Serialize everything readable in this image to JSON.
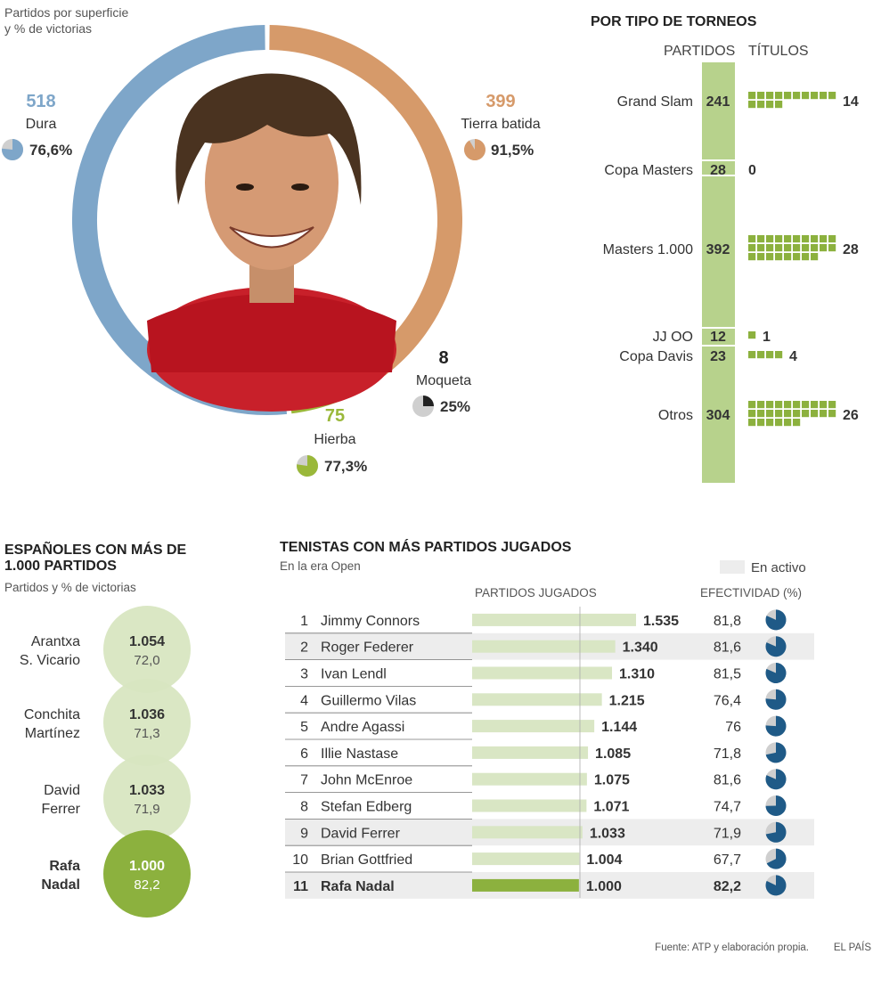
{
  "colors": {
    "dura": "#7ea6c9",
    "tierra": "#d69a6a",
    "hierba": "#9ab83a",
    "moqueta": "#222222",
    "green": "#8cb13e",
    "light_green": "#d8e6c1",
    "bar_light": "#d9e6c4",
    "pie_blue": "#1f5a87",
    "pie_gray": "#cfcfcf",
    "row_shade": "#ededed"
  },
  "surface_chart": {
    "subtitle_lines": [
      "Partidos por superficie",
      "y % de victorias"
    ],
    "photo_icon": "player-portrait-photo"
  },
  "chart_data": [
    {
      "type": "pie",
      "id": "surfaces",
      "title": "Partidos por superficie y % de victorias",
      "categories": [
        "Dura",
        "Tierra batida",
        "Hierba",
        "Moqueta"
      ],
      "values": [
        518,
        399,
        75,
        8
      ],
      "labels": [
        "518",
        "399",
        "75",
        "8"
      ],
      "win_pct": [
        76.6,
        91.5,
        77.3,
        25
      ],
      "win_pct_labels": [
        "76,6%",
        "91,5%",
        "77,3%",
        "25%"
      ]
    },
    {
      "type": "bar",
      "id": "tournaments",
      "title": "POR TIPO DE TORNEOS",
      "col_partidos": "PARTIDOS",
      "col_titulos": "TÍTULOS",
      "categories": [
        "Grand Slam",
        "Copa Masters",
        "Masters 1.000",
        "JJ OO",
        "Copa Davis",
        "Otros"
      ],
      "partidos": [
        241,
        28,
        392,
        12,
        23,
        304
      ],
      "titulos": [
        14,
        0,
        28,
        1,
        4,
        26
      ]
    },
    {
      "type": "scatter",
      "id": "spaniards",
      "title_lines": [
        "ESPAÑOLES CON MÁS DE",
        "1.000 PARTIDOS"
      ],
      "subtitle": "Partidos y % de victorias",
      "players": [
        {
          "name_lines": [
            "Arantxa",
            "S. Vicario"
          ],
          "partidos": "1.054",
          "pct": "72,0",
          "highlight": false
        },
        {
          "name_lines": [
            "Conchita",
            "Martínez"
          ],
          "partidos": "1.036",
          "pct": "71,3",
          "highlight": false
        },
        {
          "name_lines": [
            "David",
            "Ferrer"
          ],
          "partidos": "1.033",
          "pct": "71,9",
          "highlight": false
        },
        {
          "name_lines": [
            "Rafa",
            "Nadal"
          ],
          "partidos": "1.000",
          "pct": "82,2",
          "highlight": true
        }
      ]
    },
    {
      "type": "table",
      "id": "most_matches",
      "title": "TENISTAS CON MÁS PARTIDOS JUGADOS",
      "subtitle": "En la era Open",
      "legend": "En activo",
      "col_partidos": "PARTIDOS JUGADOS",
      "col_efectividad": "EFECTIVIDAD (%)",
      "axis_max": 1535,
      "rows": [
        {
          "rank": "1",
          "name": "Jimmy Connors",
          "matches": 1535,
          "matches_label": "1.535",
          "eff": 81.8,
          "eff_label": "81,8",
          "active": false,
          "highlight": false
        },
        {
          "rank": "2",
          "name": "Roger Federer",
          "matches": 1340,
          "matches_label": "1.340",
          "eff": 81.6,
          "eff_label": "81,6",
          "active": true,
          "highlight": false
        },
        {
          "rank": "3",
          "name": "Ivan Lendl",
          "matches": 1310,
          "matches_label": "1.310",
          "eff": 81.5,
          "eff_label": "81,5",
          "active": false,
          "highlight": false
        },
        {
          "rank": "4",
          "name": "Guillermo Vilas",
          "matches": 1215,
          "matches_label": "1.215",
          "eff": 76.4,
          "eff_label": "76,4",
          "active": false,
          "highlight": false
        },
        {
          "rank": "5",
          "name": "Andre Agassi",
          "matches": 1144,
          "matches_label": "1.144",
          "eff": 76,
          "eff_label": "76",
          "active": false,
          "highlight": false
        },
        {
          "rank": "6",
          "name": "Illie Nastase",
          "matches": 1085,
          "matches_label": "1.085",
          "eff": 71.8,
          "eff_label": "71,8",
          "active": false,
          "highlight": false
        },
        {
          "rank": "7",
          "name": "John McEnroe",
          "matches": 1075,
          "matches_label": "1.075",
          "eff": 81.6,
          "eff_label": "81,6",
          "active": false,
          "highlight": false
        },
        {
          "rank": "8",
          "name": "Stefan Edberg",
          "matches": 1071,
          "matches_label": "1.071",
          "eff": 74.7,
          "eff_label": "74,7",
          "active": false,
          "highlight": false
        },
        {
          "rank": "9",
          "name": "David Ferrer",
          "matches": 1033,
          "matches_label": "1.033",
          "eff": 71.9,
          "eff_label": "71,9",
          "active": true,
          "highlight": false
        },
        {
          "rank": "10",
          "name": "Brian Gottfried",
          "matches": 1004,
          "matches_label": "1.004",
          "eff": 67.7,
          "eff_label": "67,7",
          "active": false,
          "highlight": false
        },
        {
          "rank": "11",
          "name": "Rafa Nadal",
          "matches": 1000,
          "matches_label": "1.000",
          "eff": 82.2,
          "eff_label": "82,2",
          "active": true,
          "highlight": true
        }
      ]
    }
  ],
  "footer": {
    "source": "Fuente: ATP y elaboración propia.",
    "brand": "EL PAÍS"
  }
}
